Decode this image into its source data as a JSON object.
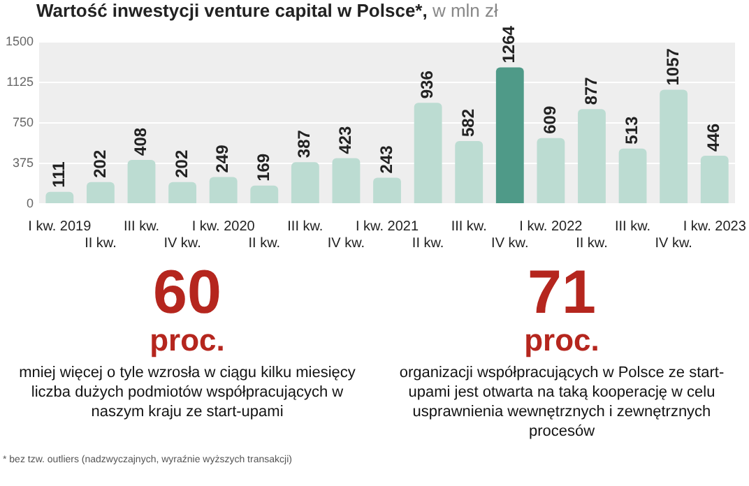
{
  "chart_data": {
    "type": "bar",
    "title": "Wartość inwestycji venture capital w Polsce*,",
    "subtitle": "w mln zł",
    "categories": [
      "I kw. 2019",
      "II kw.",
      "III kw.",
      "IV kw.",
      "I kw. 2020",
      "II kw.",
      "III kw.",
      "IV kw.",
      "I kw. 2021",
      "II kw.",
      "III kw.",
      "IV kw.",
      "I kw. 2022",
      "II kw.",
      "III kw.",
      "IV kw.",
      "I kw. 2023"
    ],
    "values": [
      111,
      202,
      408,
      202,
      249,
      169,
      387,
      423,
      243,
      936,
      582,
      1264,
      609,
      877,
      513,
      1057,
      446
    ],
    "colors": [
      "#bcdcd2",
      "#bcdcd2",
      "#bcdcd2",
      "#bcdcd2",
      "#bcdcd2",
      "#bcdcd2",
      "#bcdcd2",
      "#bcdcd2",
      "#bcdcd2",
      "#bcdcd2",
      "#bcdcd2",
      "#4f9a88",
      "#bcdcd2",
      "#bcdcd2",
      "#bcdcd2",
      "#bcdcd2",
      "#bcdcd2"
    ],
    "ylim": [
      0,
      1500
    ],
    "yticks": [
      0,
      375,
      750,
      1125,
      1500
    ],
    "grid": "y",
    "data_labels": true,
    "annotations": [
      "60",
      "proc.",
      "mniej więcej o tyle wzrosła w ciągu kilku miesięcy liczba dużych podmiotów współpracujących w naszym kraju ze start-upami",
      "71",
      "proc.",
      "organizacji współpracujących w Polsce ze start-upami jest otwarta na taką kooperację w celu usprawnienia wewnętrznych i zewnętrznych procesów",
      "* bez tzw. outliers (nadzwyczajnych, wyraźnie wyższych transakcji)"
    ]
  }
}
